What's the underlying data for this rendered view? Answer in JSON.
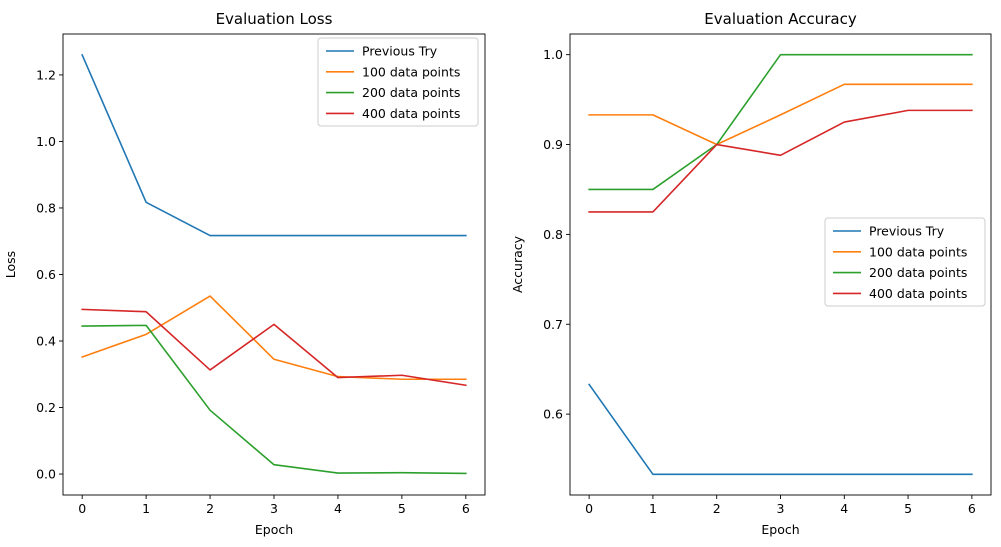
{
  "chart_data": [
    {
      "type": "line",
      "title": "Evaluation Loss",
      "xlabel": "Epoch",
      "ylabel": "Loss",
      "x": [
        0,
        1,
        2,
        3,
        4,
        5,
        6
      ],
      "xticks": [
        "0",
        "1",
        "2",
        "3",
        "4",
        "5",
        "6"
      ],
      "xlim": [
        -0.3,
        6.3
      ],
      "yticks": [
        "0.0",
        "0.2",
        "0.4",
        "0.6",
        "0.8",
        "1.0",
        "1.2"
      ],
      "ylim": [
        -0.063,
        1.323
      ],
      "legend": "upper right",
      "grid": false,
      "series": [
        {
          "name": "Previous Try",
          "color": "#1f77b4",
          "values": [
            1.26,
            0.817,
            0.717,
            0.717,
            0.717,
            0.717,
            0.717
          ]
        },
        {
          "name": "100 data points",
          "color": "#ff7f0e",
          "values": [
            0.352,
            0.42,
            0.535,
            0.345,
            0.293,
            0.285,
            0.285
          ]
        },
        {
          "name": "200 data points",
          "color": "#2ca02c",
          "values": [
            0.445,
            0.447,
            0.192,
            0.028,
            0.003,
            0.004,
            0.002
          ]
        },
        {
          "name": "400 data points",
          "color": "#d62728",
          "values": [
            0.495,
            0.488,
            0.313,
            0.45,
            0.29,
            0.297,
            0.267
          ]
        }
      ]
    },
    {
      "type": "line",
      "title": "Evaluation Accuracy",
      "xlabel": "Epoch",
      "ylabel": "Accuracy",
      "x": [
        0,
        1,
        2,
        3,
        4,
        5,
        6
      ],
      "xticks": [
        "0",
        "1",
        "2",
        "3",
        "4",
        "5",
        "6"
      ],
      "xlim": [
        -0.3,
        6.3
      ],
      "yticks": [
        "0.6",
        "0.7",
        "0.8",
        "0.9",
        "1.0"
      ],
      "ylim": [
        0.51,
        1.023
      ],
      "legend": "center right",
      "grid": false,
      "series": [
        {
          "name": "Previous Try",
          "color": "#1f77b4",
          "values": [
            0.633,
            0.533,
            0.533,
            0.533,
            0.533,
            0.533,
            0.533
          ]
        },
        {
          "name": "100 data points",
          "color": "#ff7f0e",
          "values": [
            0.933,
            0.933,
            0.9,
            0.933,
            0.967,
            0.967,
            0.967
          ]
        },
        {
          "name": "200 data points",
          "color": "#2ca02c",
          "values": [
            0.85,
            0.85,
            0.9,
            1.0,
            1.0,
            1.0,
            1.0
          ]
        },
        {
          "name": "400 data points",
          "color": "#d62728",
          "values": [
            0.825,
            0.825,
            0.9,
            0.888,
            0.925,
            0.938,
            0.938
          ]
        }
      ]
    }
  ]
}
